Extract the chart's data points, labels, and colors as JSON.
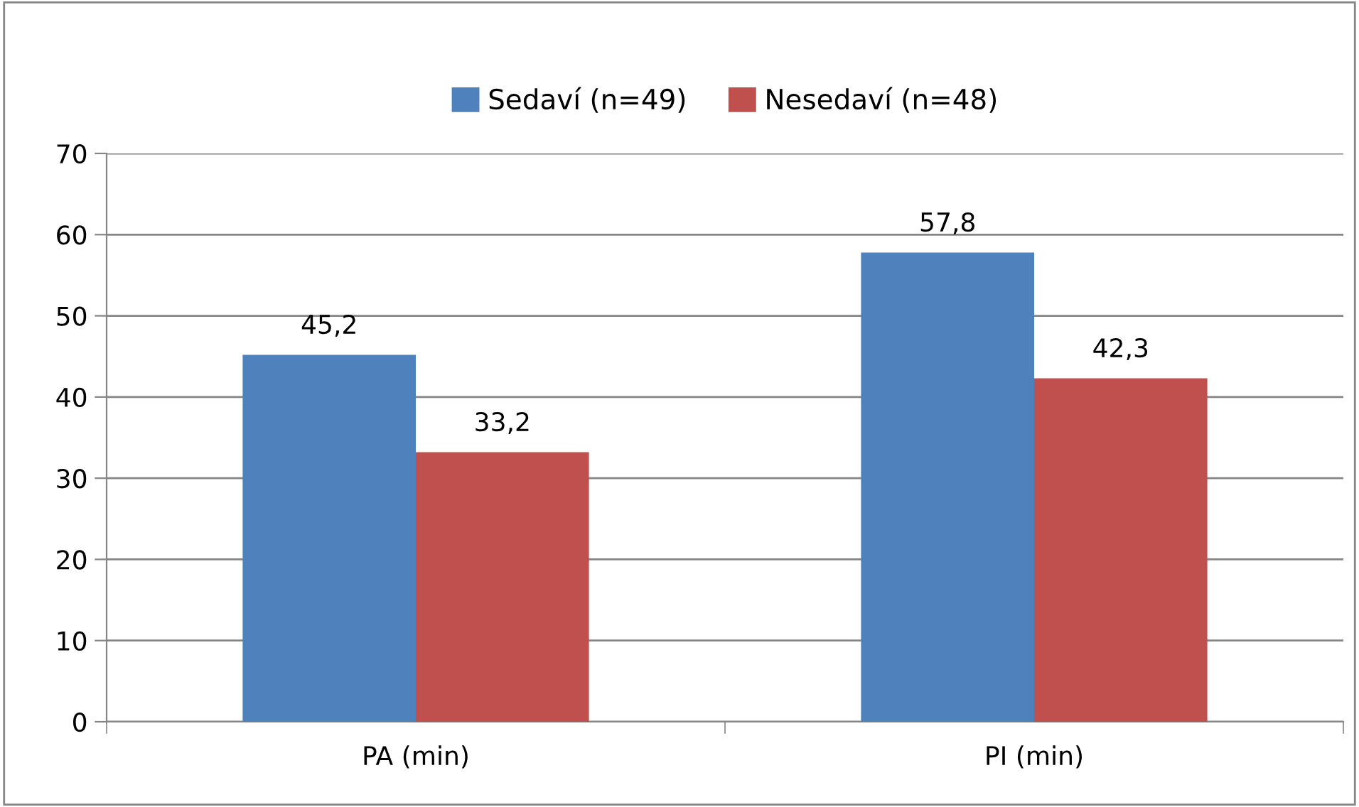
{
  "chart_data": {
    "type": "bar",
    "categories": [
      "PA (min)",
      "PI (min)"
    ],
    "series": [
      {
        "name": "Sedaví (n=49)",
        "color": "#4f81bd",
        "values": [
          45.2,
          57.8
        ],
        "value_labels": [
          "45,2",
          "57,8"
        ]
      },
      {
        "name": "Nesedaví (n=48)",
        "color": "#c0504d",
        "values": [
          33.2,
          42.3
        ],
        "value_labels": [
          "33,2",
          "42,3"
        ]
      }
    ],
    "ylim": [
      0,
      70
    ],
    "yticks": [
      0,
      10,
      20,
      30,
      40,
      50,
      60,
      70
    ],
    "grid": "y",
    "legend": "top"
  }
}
